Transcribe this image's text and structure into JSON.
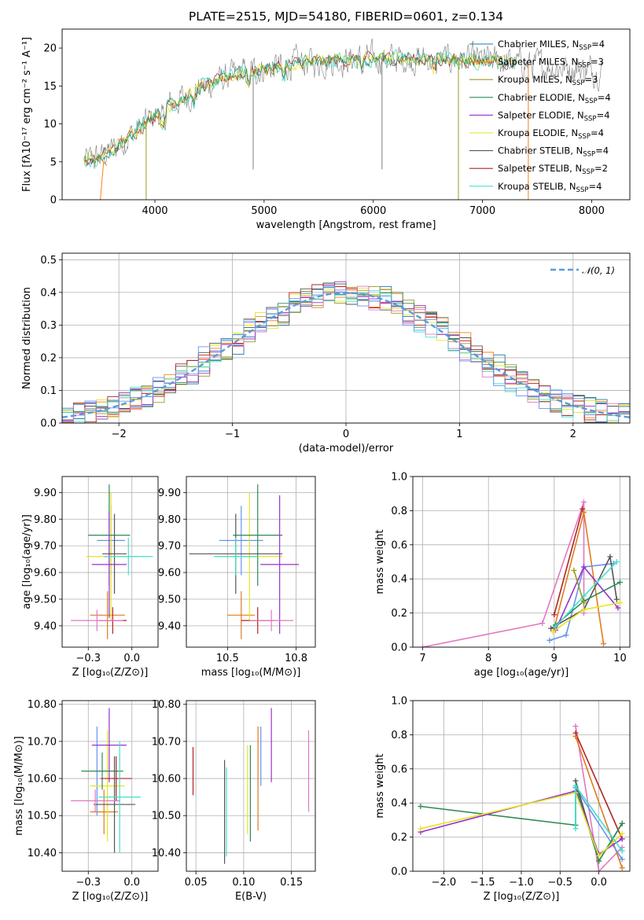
{
  "title": "PLATE=2515, MJD=54180, FIBERID=0601, z=0.134",
  "colors": {
    "Chabrier MILES": "#1f77b4",
    "Salpeter MILES": "#ff7f0e",
    "Kroupa MILES": "#9a9a20",
    "Chabrier ELODIE": "#2e8b57",
    "Salpeter ELODIE": "#9932cc",
    "Kroupa ELODIE": "#e5e520",
    "Chabrier STELIB": "#555555",
    "Salpeter STELIB": "#b22222",
    "Kroupa STELIB": "#40e0d0",
    "extra_pink": "#e377c2",
    "extra_blue": "#6495ed",
    "extra_orange": "#e07b20",
    "data_gray": "#808080",
    "gauss": "#5b9bd5"
  },
  "chart_data": [
    {
      "id": "spectrum",
      "type": "line",
      "xlabel": "wavelength [Angstrom, rest frame]",
      "ylabel": "Flux [fλ10⁻¹⁷ erg cm⁻² s⁻¹ A⁻¹]",
      "xlim": [
        3150,
        8350
      ],
      "ylim": [
        0,
        22.5
      ],
      "xticks": [
        4000,
        5000,
        6000,
        7000,
        8000
      ],
      "yticks": [
        0,
        5,
        10,
        15,
        20
      ],
      "grid": false,
      "legend_position": "top-right",
      "legend": [
        {
          "label": "Chabrier MILES, N",
          "sub": "SSP",
          "eq": "=4"
        },
        {
          "label": "Salpeter MILES, N",
          "sub": "SSP",
          "eq": "=3"
        },
        {
          "label": "Kroupa MILES, N",
          "sub": "SSP",
          "eq": "=3"
        },
        {
          "label": "Chabrier ELODIE, N",
          "sub": "SSP",
          "eq": "=4"
        },
        {
          "label": "Salpeter ELODIE, N",
          "sub": "SSP",
          "eq": "=4"
        },
        {
          "label": "Kroupa ELODIE, N",
          "sub": "SSP",
          "eq": "=4"
        },
        {
          "label": "Chabrier STELIB, N",
          "sub": "SSP",
          "eq": "=4"
        },
        {
          "label": "Salpeter STELIB, N",
          "sub": "SSP",
          "eq": "=2"
        },
        {
          "label": "Kroupa STELIB, N",
          "sub": "SSP",
          "eq": "=4"
        }
      ],
      "continuum": {
        "x": [
          3350,
          3500,
          3650,
          3800,
          3950,
          4100,
          4300,
          4500,
          4700,
          4900,
          5100,
          5300,
          5500,
          5700,
          5900,
          6100,
          6300,
          6500,
          6700,
          6900,
          7100,
          7300,
          7500,
          7700,
          7900,
          8100
        ],
        "y": [
          5.0,
          5.6,
          7.0,
          8.8,
          10.5,
          12.2,
          13.8,
          15.2,
          16.3,
          17.0,
          17.5,
          18.0,
          18.2,
          18.4,
          18.5,
          18.6,
          18.6,
          18.5,
          18.5,
          18.4,
          18.3,
          18.0,
          17.8,
          17.5,
          17.3,
          17.0
        ]
      },
      "dropouts": [
        {
          "x": 3920,
          "series": "Kroupa MILES"
        },
        {
          "x": 4900,
          "series": "data"
        },
        {
          "x": 6080,
          "series": "data"
        },
        {
          "x": 6780,
          "series": "Kroupa MILES"
        },
        {
          "x": 7420,
          "series": "Salpeter MILES"
        }
      ]
    },
    {
      "id": "residuals",
      "type": "line",
      "xlabel": "(data-model)/error",
      "ylabel": "Normed distribution",
      "xlim": [
        -2.5,
        2.5
      ],
      "ylim": [
        0,
        0.52
      ],
      "xticks": [
        -2,
        -1,
        0,
        1,
        2
      ],
      "yticks": [
        0.0,
        0.1,
        0.2,
        0.3,
        0.4,
        0.5
      ],
      "grid": true,
      "legend_position": "top-right",
      "legend": [
        {
          "label": "𝒩(0, 1)"
        }
      ],
      "bin_width": 0.1
    },
    {
      "id": "age_vs_Z",
      "type": "scatter",
      "xlabel": "Z [log₁₀(Z/Z⊙)]",
      "ylabel": "age  [log₁₀(age/yr)]",
      "xlim": [
        -0.4,
        0.15
      ],
      "ylim": [
        9.32,
        9.96
      ],
      "xticks": [
        -0.25,
        0.0
      ],
      "yticks": [
        9.4,
        9.5,
        9.6,
        9.7,
        9.8,
        9.9
      ],
      "grid": true,
      "points": [
        {
          "x": -0.12,
          "y": 9.72,
          "xerr": 0.08,
          "yerr": 0.13,
          "c": "extra_blue"
        },
        {
          "x": -0.14,
          "y": 9.44,
          "xerr": 0.1,
          "yerr": 0.09,
          "c": "extra_orange"
        },
        {
          "x": -0.12,
          "y": 9.66,
          "xerr": 0.14,
          "yerr": 0.24,
          "c": "Kroupa ELODIE"
        },
        {
          "x": -0.13,
          "y": 9.74,
          "xerr": 0.12,
          "yerr": 0.19,
          "c": "Chabrier ELODIE"
        },
        {
          "x": -0.13,
          "y": 9.63,
          "xerr": 0.1,
          "yerr": 0.2,
          "c": "Salpeter ELODIE"
        },
        {
          "x": -0.1,
          "y": 9.67,
          "xerr": 0.07,
          "yerr": 0.15,
          "c": "Chabrier STELIB"
        },
        {
          "x": -0.11,
          "y": 9.42,
          "xerr": 0.08,
          "yerr": 0.05,
          "c": "Salpeter STELIB"
        },
        {
          "x": -0.02,
          "y": 9.66,
          "xerr": 0.14,
          "yerr": 0.07,
          "c": "Kroupa STELIB"
        },
        {
          "x": -0.2,
          "y": 9.42,
          "xerr": 0.15,
          "yerr": 0.04,
          "c": "extra_pink"
        }
      ]
    },
    {
      "id": "age_vs_mass",
      "type": "scatter",
      "xlabel": "mass [log₁₀(M/M⊙)]",
      "ylabel": "",
      "xlim": [
        10.35,
        10.82
      ],
      "ylim": [
        9.32,
        9.96
      ],
      "xticks": [
        10.5,
        10.75
      ],
      "yticks": [
        9.4,
        9.5,
        9.6,
        9.7,
        9.8,
        9.9
      ],
      "grid": true,
      "points": [
        {
          "x": 10.55,
          "y": 9.72,
          "xerr": 0.08,
          "yerr": 0.13,
          "c": "extra_blue"
        },
        {
          "x": 10.55,
          "y": 9.44,
          "xerr": 0.05,
          "yerr": 0.09,
          "c": "extra_orange"
        },
        {
          "x": 10.58,
          "y": 9.66,
          "xerr": 0.12,
          "yerr": 0.24,
          "c": "Kroupa ELODIE"
        },
        {
          "x": 10.61,
          "y": 9.74,
          "xerr": 0.09,
          "yerr": 0.19,
          "c": "Chabrier ELODIE"
        },
        {
          "x": 10.69,
          "y": 9.63,
          "xerr": 0.07,
          "yerr": 0.26,
          "c": "Salpeter ELODIE"
        },
        {
          "x": 10.53,
          "y": 9.67,
          "xerr": 0.17,
          "yerr": 0.15,
          "c": "Chabrier STELIB"
        },
        {
          "x": 10.61,
          "y": 9.42,
          "xerr": 0.06,
          "yerr": 0.05,
          "c": "Salpeter STELIB"
        },
        {
          "x": 10.53,
          "y": 9.66,
          "xerr": 0.08,
          "yerr": 0.07,
          "c": "Kroupa STELIB"
        },
        {
          "x": 10.66,
          "y": 9.42,
          "xerr": 0.08,
          "yerr": 0.04,
          "c": "extra_pink"
        }
      ]
    },
    {
      "id": "massweight_vs_age",
      "type": "line",
      "xlabel": "age  [log₁₀(age/yr)]",
      "ylabel": "mass weight",
      "xlim": [
        6.85,
        10.15
      ],
      "ylim": [
        0,
        1.0
      ],
      "xticks": [
        7,
        8,
        9,
        10
      ],
      "yticks": [
        0.0,
        0.2,
        0.4,
        0.6,
        0.8,
        1.0
      ],
      "grid": true,
      "series": [
        {
          "c": "extra_pink",
          "x": [
            7.0,
            8.82,
            9.45,
            9.45
          ],
          "y": [
            0.0,
            0.14,
            0.85,
            0.2
          ]
        },
        {
          "c": "Salpeter STELIB",
          "x": [
            9.0,
            9.43
          ],
          "y": [
            0.19,
            0.81
          ]
        },
        {
          "c": "extra_orange",
          "x": [
            9.0,
            9.45,
            9.75
          ],
          "y": [
            0.11,
            0.79,
            0.02
          ]
        },
        {
          "c": "extra_blue",
          "x": [
            8.93,
            9.18,
            9.45,
            9.9
          ],
          "y": [
            0.04,
            0.07,
            0.47,
            0.49
          ]
        },
        {
          "c": "Chabrier STELIB",
          "x": [
            8.95,
            9.45,
            9.85,
            9.95
          ],
          "y": [
            0.11,
            0.22,
            0.53,
            0.28
          ]
        },
        {
          "c": "Chabrier ELODIE",
          "x": [
            9.02,
            9.45,
            10.0
          ],
          "y": [
            0.13,
            0.27,
            0.38
          ]
        },
        {
          "c": "Salpeter ELODIE",
          "x": [
            9.02,
            9.45,
            9.97
          ],
          "y": [
            0.1,
            0.47,
            0.23
          ]
        },
        {
          "c": "Kroupa ELODIE",
          "x": [
            8.98,
            9.45,
            10.0
          ],
          "y": [
            0.09,
            0.22,
            0.26
          ]
        },
        {
          "c": "Kroupa STELIB",
          "x": [
            9.02,
            9.45,
            9.95
          ],
          "y": [
            0.12,
            0.3,
            0.5
          ]
        },
        {
          "c": "Kroupa MILES",
          "x": [
            9.3,
            9.45
          ],
          "y": [
            0.45,
            0.26
          ]
        }
      ]
    },
    {
      "id": "mass_vs_Z",
      "type": "scatter",
      "xlabel": "Z [log₁₀(Z/Z⊙)]",
      "ylabel": "mass [log₁₀(M/M⊙)]",
      "xlim": [
        -0.4,
        0.15
      ],
      "ylim": [
        10.35,
        10.81
      ],
      "xticks": [
        -0.25,
        0.0
      ],
      "yticks": [
        10.4,
        10.5,
        10.6,
        10.7,
        10.8
      ],
      "grid": true,
      "points": [
        {
          "x": -0.2,
          "y": 10.62,
          "xerr": 0.02,
          "yerr": 0.12,
          "c": "extra_blue"
        },
        {
          "x": -0.16,
          "y": 10.51,
          "xerr": 0.08,
          "yerr": 0.06,
          "c": "extra_orange"
        },
        {
          "x": -0.14,
          "y": 10.58,
          "xerr": 0.1,
          "yerr": 0.15,
          "c": "Kroupa ELODIE"
        },
        {
          "x": -0.13,
          "y": 10.69,
          "xerr": 0.1,
          "yerr": 0.1,
          "c": "Salpeter ELODIE"
        },
        {
          "x": -0.17,
          "y": 10.62,
          "xerr": 0.12,
          "yerr": 0.05,
          "c": "Chabrier ELODIE"
        },
        {
          "x": -0.09,
          "y": 10.6,
          "xerr": 0.09,
          "yerr": 0.06,
          "c": "Salpeter STELIB"
        },
        {
          "x": -0.1,
          "y": 10.53,
          "xerr": 0.12,
          "yerr": 0.13,
          "c": "Chabrier STELIB"
        },
        {
          "x": -0.07,
          "y": 10.55,
          "xerr": 0.12,
          "yerr": 0.15,
          "c": "Kroupa STELIB"
        },
        {
          "x": -0.21,
          "y": 10.54,
          "xerr": 0.14,
          "yerr": 0.03,
          "c": "extra_pink"
        }
      ]
    },
    {
      "id": "mass_vs_EBV",
      "type": "scatter",
      "xlabel": "E(B-V)",
      "ylabel": "",
      "xlim": [
        0.04,
        0.175
      ],
      "ylim": [
        10.35,
        10.81
      ],
      "xticks": [
        0.05,
        0.1,
        0.15
      ],
      "yticks": [
        10.4,
        10.5,
        10.6,
        10.7,
        10.8
      ],
      "grid": true,
      "points": [
        {
          "x": 0.047,
          "y": 10.62,
          "yerr": 0.065,
          "c": "Salpeter STELIB"
        },
        {
          "x": 0.08,
          "y": 10.51,
          "yerr": 0.14,
          "c": "Chabrier STELIB"
        },
        {
          "x": 0.082,
          "y": 10.51,
          "yerr": 0.12,
          "c": "Kroupa STELIB"
        },
        {
          "x": 0.104,
          "y": 10.57,
          "yerr": 0.12,
          "c": "Kroupa ELODIE"
        },
        {
          "x": 0.107,
          "y": 10.56,
          "yerr": 0.13,
          "c": "Chabrier ELODIE"
        },
        {
          "x": 0.115,
          "y": 10.6,
          "yerr": 0.14,
          "c": "extra_orange"
        },
        {
          "x": 0.118,
          "y": 10.66,
          "yerr": 0.08,
          "c": "extra_blue"
        },
        {
          "x": 0.129,
          "y": 10.69,
          "yerr": 0.1,
          "c": "Salpeter ELODIE"
        },
        {
          "x": 0.168,
          "y": 10.62,
          "yerr": 0.11,
          "c": "extra_pink"
        }
      ]
    },
    {
      "id": "massweight_vs_Z",
      "type": "line",
      "xlabel": "Z [log₁₀(Z/Z⊙)]",
      "ylabel": "mass weight",
      "xlim": [
        -2.4,
        0.4
      ],
      "ylim": [
        0,
        1.0
      ],
      "xticks": [
        -2.0,
        -1.5,
        -1.0,
        -0.5,
        0.0
      ],
      "yticks": [
        0.0,
        0.2,
        0.4,
        0.6,
        0.8,
        1.0
      ],
      "grid": true,
      "series": [
        {
          "c": "extra_pink",
          "x": [
            -0.3,
            0.0,
            0.3
          ],
          "y": [
            0.85,
            0.0,
            0.14
          ]
        },
        {
          "c": "Salpeter STELIB",
          "x": [
            -0.3,
            0.3
          ],
          "y": [
            0.81,
            0.19
          ]
        },
        {
          "c": "extra_orange",
          "x": [
            -0.3,
            0.3
          ],
          "y": [
            0.79,
            0.02
          ]
        },
        {
          "c": "extra_blue",
          "x": [
            -0.3,
            0.3
          ],
          "y": [
            0.49,
            0.07
          ]
        },
        {
          "c": "Chabrier STELIB",
          "x": [
            -0.3,
            0.0,
            0.3
          ],
          "y": [
            0.53,
            0.06,
            0.28
          ]
        },
        {
          "c": "Chabrier ELODIE",
          "x": [
            -2.3,
            -0.3,
            -0.3,
            0.0,
            0.3
          ],
          "y": [
            0.38,
            0.27,
            0.5,
            0.06,
            0.28
          ]
        },
        {
          "c": "Salpeter ELODIE",
          "x": [
            -2.3,
            -0.3,
            0.0,
            0.3
          ],
          "y": [
            0.23,
            0.47,
            0.1,
            0.19
          ]
        },
        {
          "c": "Kroupa ELODIE",
          "x": [
            -2.3,
            -0.3,
            0.0,
            0.3
          ],
          "y": [
            0.25,
            0.46,
            0.09,
            0.22
          ]
        },
        {
          "c": "Kroupa STELIB",
          "x": [
            -0.3,
            -0.3,
            0.3
          ],
          "y": [
            0.25,
            0.5,
            0.12
          ]
        }
      ]
    }
  ]
}
